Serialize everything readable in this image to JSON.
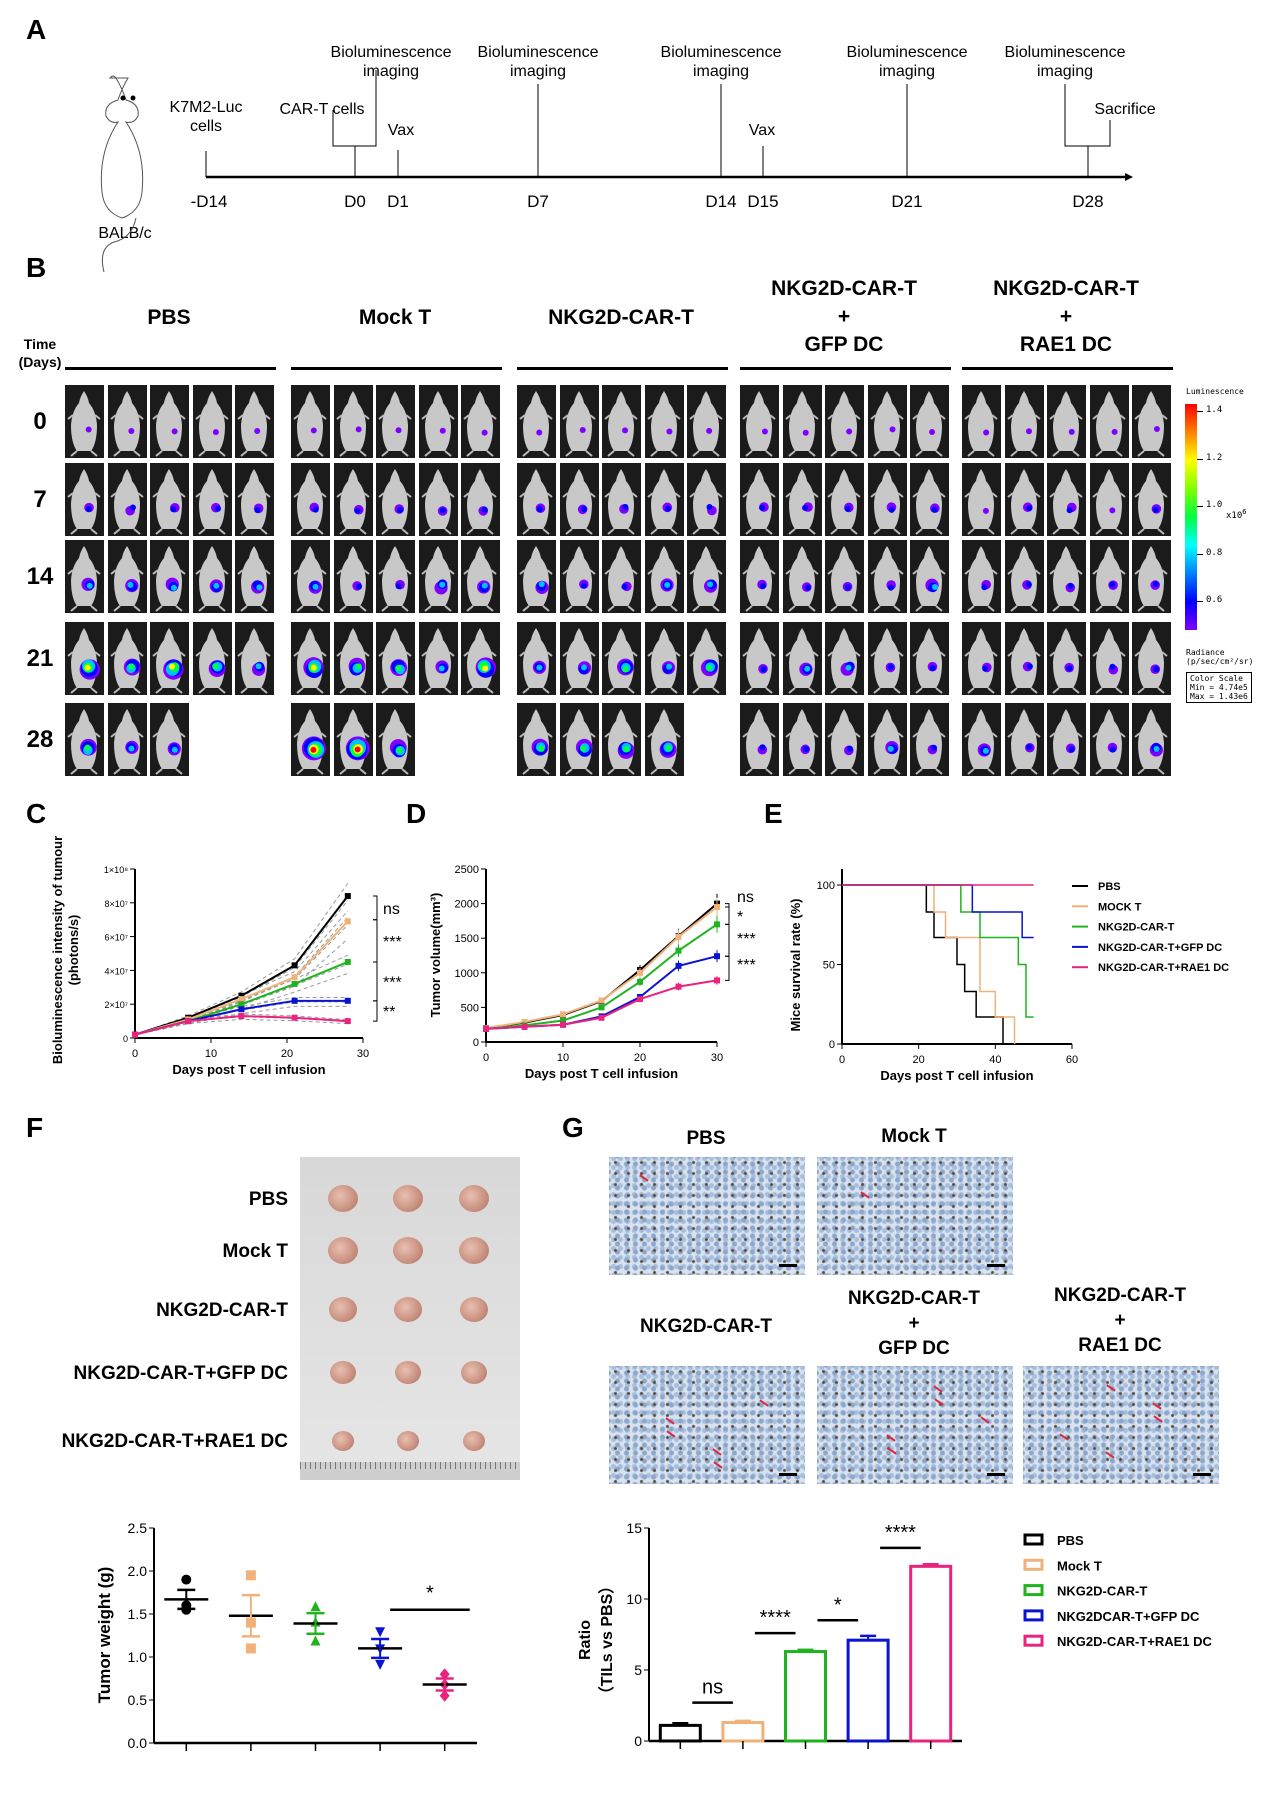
{
  "panels": {
    "a": "A",
    "b": "B",
    "c": "C",
    "d": "D",
    "e": "E",
    "f": "F",
    "g": "G"
  },
  "timeline": {
    "strain": "BALB/c",
    "days": [
      "-D14",
      "D0",
      "D1",
      "D7",
      "D14",
      "D15",
      "D21",
      "D28"
    ],
    "events": {
      "cells": "K7M2-Luc\ncells",
      "cart": "CAR-T cells",
      "vax1": "Vax",
      "vax2": "Vax",
      "imaging": "Bioluminescence\nimaging",
      "sacrifice": "Sacrifice"
    }
  },
  "imaging": {
    "time_label": "Time\n(Days)",
    "days": [
      "0",
      "7",
      "14",
      "21",
      "28"
    ],
    "groups": [
      {
        "title": "PBS",
        "mice_per_row": [
          5,
          5,
          5,
          5,
          3
        ]
      },
      {
        "title": "Mock T",
        "mice_per_row": [
          5,
          5,
          5,
          5,
          3
        ]
      },
      {
        "title": "NKG2D-CAR-T",
        "mice_per_row": [
          5,
          5,
          5,
          5,
          4
        ]
      },
      {
        "title": "NKG2D-CAR-T\n+\nGFP DC",
        "mice_per_row": [
          5,
          5,
          5,
          5,
          5
        ]
      },
      {
        "title": "NKG2D-CAR-T\n+\nRAE1 DC",
        "mice_per_row": [
          5,
          5,
          5,
          5,
          5
        ]
      }
    ],
    "colorbar": {
      "title": "Luminescence",
      "ticks": [
        "1.4",
        "1.2",
        "1.0",
        "0.8",
        "0.6"
      ],
      "multiplier": "x10",
      "exponent": "6",
      "unit": "Radiance\n(p/sec/cm²/sr)",
      "scale_box": "Color Scale\nMin = 4.74e5\nMax = 1.43e6",
      "colors": [
        "#ff0000",
        "#ffff00",
        "#00ff40",
        "#00ffff",
        "#0000ff",
        "#7f00ff"
      ]
    }
  },
  "colors": {
    "PBS": "#000000",
    "MockT": "#f0b27a",
    "CAR": "#1fb31f",
    "GFP": "#0a14d0",
    "RAE1": "#e8247f",
    "individual": "#9a9a9a"
  },
  "chart_data": [
    {
      "id": "C",
      "type": "line",
      "xlabel": "Days post T cell infusion",
      "ylabel": "Bioluminescence intensity of tumour\n(photons/s)",
      "xlim": [
        0,
        30
      ],
      "ylim": [
        0,
        100000000
      ],
      "xticks": [
        "0",
        "10",
        "20",
        "30"
      ],
      "yticks": [
        "0",
        "2×10⁷",
        "4×10⁷",
        "6×10⁷",
        "8×10⁷",
        "1×10⁸"
      ],
      "x": [
        0,
        7,
        14,
        21,
        28
      ],
      "series": [
        {
          "key": "PBS",
          "values": [
            2000000,
            12000000,
            25000000,
            43000000,
            84000000
          ]
        },
        {
          "key": "MockT",
          "values": [
            2000000,
            11000000,
            23000000,
            36000000,
            69000000
          ]
        },
        {
          "key": "CAR",
          "values": [
            2000000,
            10000000,
            20000000,
            32000000,
            45000000
          ]
        },
        {
          "key": "GFP",
          "values": [
            2000000,
            10000000,
            17000000,
            22000000,
            22000000
          ]
        },
        {
          "key": "RAE1",
          "values": [
            2000000,
            10000000,
            13000000,
            12000000,
            10000000
          ]
        }
      ],
      "significance": [
        "ns",
        "***",
        "***",
        "**"
      ]
    },
    {
      "id": "D",
      "type": "line",
      "xlabel": "Days post T cell infusion",
      "ylabel": "Tumor volume(mm³)",
      "xlim": [
        0,
        30
      ],
      "ylim": [
        0,
        2500
      ],
      "xticks": [
        "0",
        "10",
        "20",
        "30"
      ],
      "yticks": [
        "0",
        "500",
        "1000",
        "1500",
        "2000",
        "2500"
      ],
      "x": [
        0,
        5,
        10,
        15,
        20,
        25,
        30
      ],
      "series": [
        {
          "key": "PBS",
          "values": [
            200,
            280,
            390,
            590,
            1040,
            1530,
            2000
          ]
        },
        {
          "key": "MockT",
          "values": [
            200,
            290,
            400,
            600,
            1000,
            1520,
            1950
          ]
        },
        {
          "key": "CAR",
          "values": [
            190,
            240,
            310,
            500,
            870,
            1320,
            1700
          ]
        },
        {
          "key": "GFP",
          "values": [
            190,
            220,
            250,
            370,
            650,
            1100,
            1240
          ]
        },
        {
          "key": "RAE1",
          "values": [
            190,
            220,
            250,
            350,
            620,
            800,
            890
          ]
        }
      ],
      "significance": [
        "ns",
        "*",
        "***",
        "***"
      ]
    },
    {
      "id": "E",
      "type": "line",
      "xlabel": "Days post T cell infusion",
      "ylabel": "Mice survival rate (%)",
      "xlim": [
        0,
        60
      ],
      "ylim": [
        0,
        100
      ],
      "xticks": [
        "0",
        "20",
        "40",
        "60"
      ],
      "yticks": [
        "0",
        "50",
        "100"
      ],
      "legend_position": "right",
      "series": [
        {
          "key": "PBS",
          "name": "PBS",
          "steps": [
            [
              0,
              100
            ],
            [
              22,
              83
            ],
            [
              24,
              67
            ],
            [
              30,
              50
            ],
            [
              32,
              33
            ],
            [
              35,
              17
            ],
            [
              42,
              0
            ]
          ]
        },
        {
          "key": "MockT",
          "name": "MOCK T",
          "steps": [
            [
              0,
              100
            ],
            [
              24,
              83
            ],
            [
              27,
              67
            ],
            [
              36,
              33
            ],
            [
              40,
              17
            ],
            [
              45,
              0
            ]
          ]
        },
        {
          "key": "CAR",
          "name": "NKG2D-CAR-T",
          "steps": [
            [
              0,
              100
            ],
            [
              31,
              83
            ],
            [
              36,
              67
            ],
            [
              46,
              50
            ],
            [
              48,
              17
            ],
            [
              50,
              17
            ]
          ]
        },
        {
          "key": "GFP",
          "name": "NKG2D-CAR-T+GFP DC",
          "steps": [
            [
              0,
              100
            ],
            [
              34,
              83
            ],
            [
              47,
              67
            ],
            [
              50,
              67
            ]
          ]
        },
        {
          "key": "RAE1",
          "name": "NKG2D-CAR-T+RAE1 DC",
          "steps": [
            [
              0,
              100
            ],
            [
              50,
              100
            ]
          ]
        }
      ]
    },
    {
      "id": "F-weight",
      "type": "scatter",
      "ylabel": "Tumor weight (g)",
      "ylim": [
        0,
        2.5
      ],
      "yticks": [
        "0.0",
        "0.5",
        "1.0",
        "1.5",
        "2.0",
        "2.5"
      ],
      "groups": [
        {
          "key": "PBS",
          "points": [
            1.9,
            1.6,
            1.55
          ],
          "mean": 1.67,
          "sem": 0.11
        },
        {
          "key": "MockT",
          "points": [
            1.95,
            1.4,
            1.1
          ],
          "mean": 1.48,
          "sem": 0.24
        },
        {
          "key": "CAR",
          "points": [
            1.58,
            1.4,
            1.18
          ],
          "mean": 1.39,
          "sem": 0.12
        },
        {
          "key": "GFP",
          "points": [
            1.3,
            1.1,
            0.92
          ],
          "mean": 1.1,
          "sem": 0.11
        },
        {
          "key": "RAE1",
          "points": [
            0.8,
            0.68,
            0.55
          ],
          "mean": 0.68,
          "sem": 0.07
        }
      ],
      "significance": [
        {
          "label": "*",
          "between": [
            3,
            4
          ],
          "y": 1.55
        }
      ]
    },
    {
      "id": "G-ratio",
      "type": "bar",
      "ylabel": "Ratio\n（TILs vs PBS）",
      "ylim": [
        0,
        15
      ],
      "yticks": [
        "0",
        "5",
        "10",
        "15"
      ],
      "legend_position": "right",
      "categories": [
        "PBS",
        "Mock T",
        "NKG2D-CAR-T",
        "NKG2DCAR-T+GFP DC",
        "NKG2D-CAR-T+RAE1 DC"
      ],
      "keys": [
        "PBS",
        "MockT",
        "CAR",
        "GFP",
        "RAE1"
      ],
      "values": [
        1.1,
        1.3,
        6.3,
        7.1,
        12.3
      ],
      "errors": [
        0.15,
        0.12,
        0.12,
        0.3,
        0.15
      ],
      "significance": [
        {
          "label": "ns",
          "between": [
            0,
            1
          ],
          "y": 2.7
        },
        {
          "label": "****",
          "between": [
            1,
            2
          ],
          "y": 7.6
        },
        {
          "label": "*",
          "between": [
            2,
            3
          ],
          "y": 8.5
        },
        {
          "label": "****",
          "between": [
            3,
            4
          ],
          "y": 13.6
        }
      ]
    }
  ],
  "tumors": {
    "rows": [
      "PBS",
      "Mock T",
      "NKG2D-CAR-T",
      "NKG2D-CAR-T+GFP DC",
      "NKG2D-CAR-T+RAE1 DC"
    ]
  },
  "ihc": {
    "titles": [
      "PBS",
      "Mock T",
      "NKG2D-CAR-T",
      "NKG2D-CAR-T\n+\nGFP DC",
      "NKG2D-CAR-T\n+\nRAE1 DC"
    ]
  }
}
